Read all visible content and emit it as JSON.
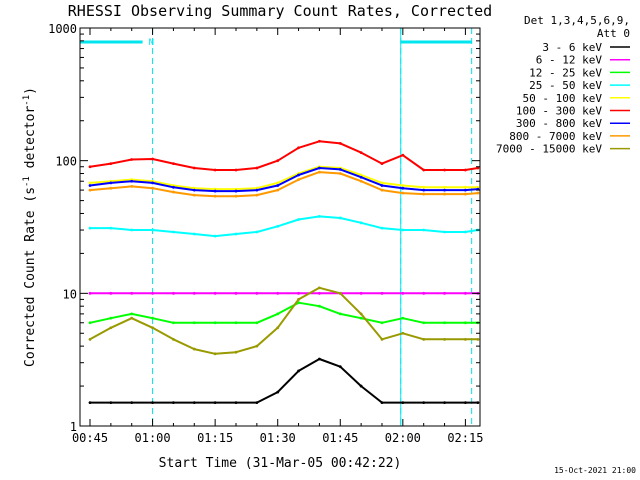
{
  "chart_data": {
    "type": "line",
    "title": "RHESSI Observing Summary Count Rates, Corrected",
    "xlabel": "Start Time (31-Mar-05 00:42:22)",
    "ylabel": "Corrected Count Rate (s",
    "ylabel_sup1": "-1",
    "ylabel_mid": " detector",
    "ylabel_sup2": "-1",
    "ylabel_end": ")",
    "yscale": "log",
    "ylim": [
      1,
      1000
    ],
    "xlim_minutes": [
      -2.4,
      93.5
    ],
    "x_ticks": [
      {
        "m": 0,
        "label": "00:45"
      },
      {
        "m": 15,
        "label": "01:00"
      },
      {
        "m": 30,
        "label": "01:15"
      },
      {
        "m": 45,
        "label": "01:30"
      },
      {
        "m": 60,
        "label": "01:45"
      },
      {
        "m": 75,
        "label": "02:00"
      },
      {
        "m": 90,
        "label": "02:15"
      }
    ],
    "y_ticks": [
      {
        "v": 1,
        "label": "1"
      },
      {
        "v": 10,
        "label": "10"
      },
      {
        "v": 100,
        "label": "100"
      },
      {
        "v": 1000,
        "label": "1000"
      }
    ],
    "legend_header": [
      "Det 1,3,4,5,6,9,",
      "Att 0"
    ],
    "night_marker": "N",
    "night_bars": [
      [
        -2.4,
        12.6
      ],
      [
        74.5,
        91.5
      ]
    ],
    "dashed_lines": [
      15.0,
      74.5,
      91.5
    ],
    "solid_lines": [
      -2.4,
      74.5
    ],
    "x_series": [
      0,
      5,
      10,
      15,
      20,
      25,
      30,
      35,
      40,
      45,
      50,
      55,
      60,
      65,
      70,
      75,
      80,
      85,
      90,
      93
    ],
    "series": [
      {
        "name": "3 - 6 keV",
        "color": "#000000",
        "values": [
          1.5,
          1.5,
          1.5,
          1.5,
          1.5,
          1.5,
          1.5,
          1.5,
          1.5,
          1.8,
          2.6,
          3.2,
          2.8,
          2.0,
          1.5,
          1.5,
          1.5,
          1.5,
          1.5,
          1.5
        ]
      },
      {
        "name": "6 - 12 keV",
        "color": "#ff00ff",
        "values": [
          10,
          10,
          10,
          10,
          10,
          10,
          10,
          10,
          10,
          10,
          10,
          10,
          10,
          10,
          10,
          10,
          10,
          10,
          10,
          10
        ]
      },
      {
        "name": "12 - 25 keV",
        "color": "#00ff00",
        "values": [
          6.0,
          6.5,
          7.0,
          6.5,
          6.0,
          6.0,
          6.0,
          6.0,
          6.0,
          7.0,
          8.5,
          8.0,
          7.0,
          6.5,
          6.0,
          6.5,
          6.0,
          6.0,
          6.0,
          6.0
        ]
      },
      {
        "name": "25 - 50 keV",
        "color": "#00ffff",
        "values": [
          31,
          31,
          30,
          30,
          29,
          28,
          27,
          28,
          29,
          32,
          36,
          38,
          37,
          34,
          31,
          30,
          30,
          29,
          29,
          30
        ]
      },
      {
        "name": "50 - 100 keV",
        "color": "#ffff00",
        "values": [
          68,
          70,
          72,
          70,
          65,
          62,
          61,
          61,
          62,
          68,
          80,
          90,
          88,
          78,
          68,
          65,
          63,
          63,
          63,
          63
        ]
      },
      {
        "name": "100 - 300 keV",
        "color": "#ff0000",
        "values": [
          90,
          95,
          102,
          103,
          95,
          88,
          85,
          85,
          88,
          100,
          125,
          140,
          135,
          115,
          95,
          110,
          85,
          85,
          85,
          88
        ]
      },
      {
        "name": "300 - 800 keV",
        "color": "#0000ff",
        "values": [
          65,
          68,
          70,
          68,
          63,
          60,
          59,
          59,
          60,
          65,
          78,
          88,
          86,
          75,
          65,
          62,
          60,
          60,
          60,
          61
        ]
      },
      {
        "name": "800 - 7000 keV",
        "color": "#ff9900",
        "values": [
          60,
          62,
          64,
          62,
          58,
          55,
          54,
          54,
          55,
          60,
          72,
          82,
          80,
          70,
          60,
          57,
          56,
          56,
          56,
          57
        ]
      },
      {
        "name": "7000 - 15000 keV",
        "color": "#999900",
        "values": [
          4.5,
          5.5,
          6.5,
          5.5,
          4.5,
          3.8,
          3.5,
          3.6,
          4.0,
          5.5,
          9.0,
          11.0,
          10.0,
          7.0,
          4.5,
          5.0,
          4.5,
          4.5,
          4.5,
          4.5
        ]
      }
    ]
  },
  "footer": {
    "timestamp": "15-Oct-2021 21:00"
  }
}
